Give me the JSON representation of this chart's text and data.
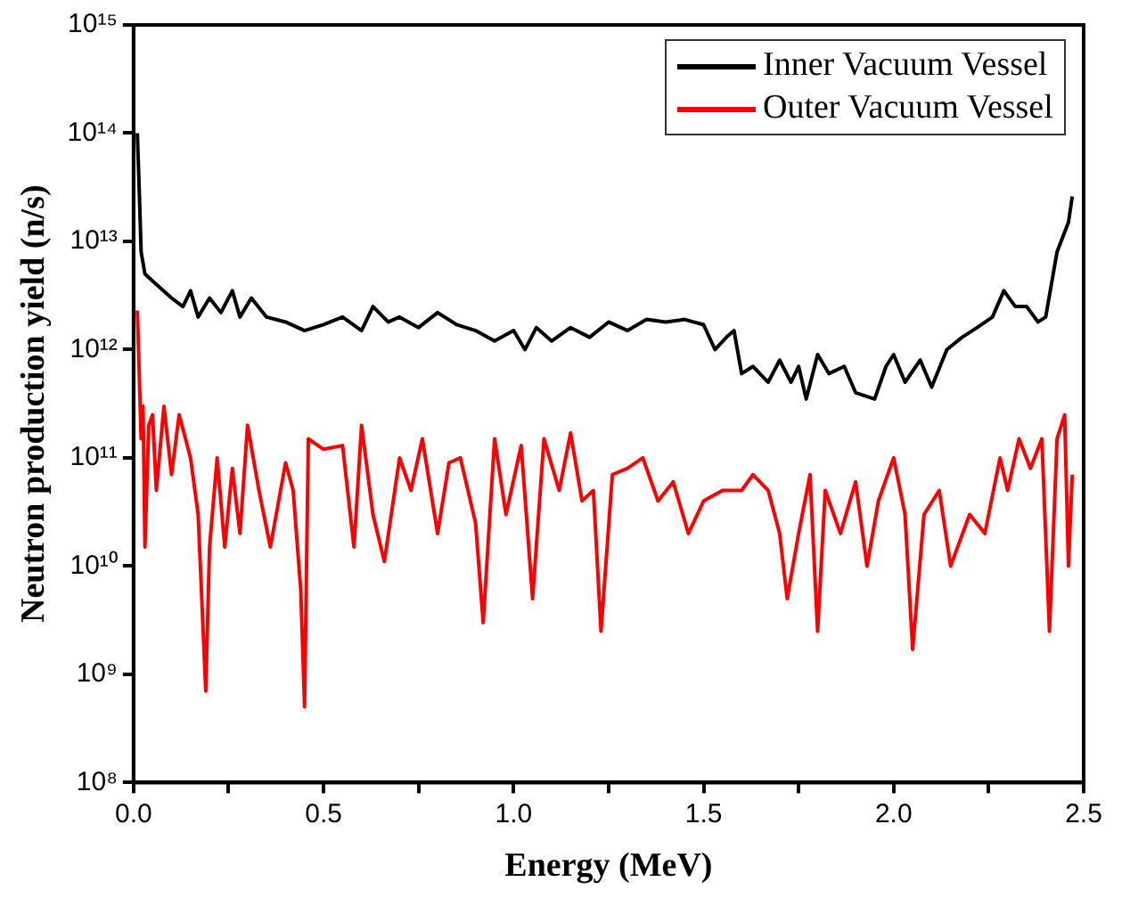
{
  "chart_data": {
    "type": "line",
    "xlabel": "Energy (MeV)",
    "ylabel": "Neutron production yield (n/s)",
    "log": "y",
    "grid": false,
    "legend": "top right",
    "marker": "none",
    "line_style": "solid",
    "xlim": [
      0,
      2.5
    ],
    "xticks": [
      {
        "value": 0,
        "label": "0.0"
      },
      {
        "value": 0.25,
        "label": null
      },
      {
        "value": 0.5,
        "label": "0.5"
      },
      {
        "value": 0.75,
        "label": null
      },
      {
        "value": 1,
        "label": "1.0"
      },
      {
        "value": 1.25,
        "label": null
      },
      {
        "value": 1.5,
        "label": "1.5"
      },
      {
        "value": 1.75,
        "label": null
      },
      {
        "value": 2,
        "label": "2.0"
      },
      {
        "value": 2.25,
        "label": null
      },
      {
        "value": 2.5,
        "label": "2.5"
      }
    ],
    "ylim": [
      100000000.0,
      1000000000000000.0
    ],
    "yticks": [
      {
        "value": 100000000.0,
        "label": "10⁸"
      },
      {
        "value": 1000000000.0,
        "label": "10⁹"
      },
      {
        "value": 10000000000.0,
        "label": "10¹⁰"
      },
      {
        "value": 100000000000.0,
        "label": "10¹¹"
      },
      {
        "value": 1000000000000.0,
        "label": "10¹²"
      },
      {
        "value": 10000000000000.0,
        "label": "10¹³"
      },
      {
        "value": 100000000000000.0,
        "label": "10¹⁴"
      },
      {
        "value": 1000000000000000.0,
        "label": "10¹⁵"
      }
    ],
    "series": [
      {
        "name": "Inner Vacuum Vessel",
        "color": "#000000",
        "x": [
          0.01,
          0.015,
          0.02,
          0.03,
          0.06,
          0.1,
          0.13,
          0.15,
          0.17,
          0.2,
          0.23,
          0.26,
          0.28,
          0.31,
          0.35,
          0.4,
          0.45,
          0.5,
          0.55,
          0.6,
          0.63,
          0.67,
          0.7,
          0.75,
          0.8,
          0.85,
          0.9,
          0.95,
          1.0,
          1.03,
          1.06,
          1.1,
          1.15,
          1.2,
          1.25,
          1.3,
          1.35,
          1.4,
          1.45,
          1.5,
          1.53,
          1.56,
          1.58,
          1.6,
          1.63,
          1.67,
          1.7,
          1.73,
          1.75,
          1.77,
          1.8,
          1.83,
          1.87,
          1.9,
          1.95,
          1.98,
          2.0,
          2.03,
          2.07,
          2.1,
          2.14,
          2.18,
          2.22,
          2.26,
          2.29,
          2.32,
          2.35,
          2.38,
          2.4,
          2.43,
          2.46,
          2.47
        ],
        "values": [
          100000000000000.0,
          30000000000000.0,
          8000000000000.0,
          5000000000000.0,
          4000000000000.0,
          3000000000000.0,
          2500000000000.0,
          3500000000000.0,
          2000000000000.0,
          3000000000000.0,
          2200000000000.0,
          3500000000000.0,
          2000000000000.0,
          3000000000000.0,
          2000000000000.0,
          1800000000000.0,
          1500000000000.0,
          1700000000000.0,
          2000000000000.0,
          1500000000000.0,
          2500000000000.0,
          1800000000000.0,
          2000000000000.0,
          1600000000000.0,
          2200000000000.0,
          1700000000000.0,
          1500000000000.0,
          1200000000000.0,
          1500000000000.0,
          1000000000000.0,
          1600000000000.0,
          1200000000000.0,
          1600000000000.0,
          1300000000000.0,
          1800000000000.0,
          1500000000000.0,
          1900000000000.0,
          1800000000000.0,
          1900000000000.0,
          1700000000000.0,
          1000000000000.0,
          1300000000000.0,
          1500000000000.0,
          600000000000.0,
          700000000000.0,
          500000000000.0,
          800000000000.0,
          500000000000.0,
          700000000000.0,
          350000000000.0,
          900000000000.0,
          600000000000.0,
          700000000000.0,
          400000000000.0,
          350000000000.0,
          700000000000.0,
          900000000000.0,
          500000000000.0,
          800000000000.0,
          450000000000.0,
          1000000000000.0,
          1300000000000.0,
          1600000000000.0,
          2000000000000.0,
          3500000000000.0,
          2500000000000.0,
          2500000000000.0,
          1800000000000.0,
          2000000000000.0,
          8000000000000.0,
          15000000000000.0,
          26000000000000.0
        ]
      },
      {
        "name": "Outer Vacuum Vessel",
        "color": "#ff0000",
        "x": [
          0.01,
          0.015,
          0.02,
          0.025,
          0.03,
          0.04,
          0.05,
          0.06,
          0.08,
          0.1,
          0.12,
          0.15,
          0.17,
          0.19,
          0.2,
          0.22,
          0.24,
          0.26,
          0.28,
          0.3,
          0.33,
          0.36,
          0.4,
          0.42,
          0.44,
          0.45,
          0.46,
          0.5,
          0.55,
          0.58,
          0.6,
          0.63,
          0.66,
          0.7,
          0.73,
          0.76,
          0.8,
          0.83,
          0.86,
          0.9,
          0.92,
          0.95,
          0.98,
          1.02,
          1.05,
          1.08,
          1.12,
          1.15,
          1.18,
          1.21,
          1.23,
          1.26,
          1.3,
          1.34,
          1.38,
          1.42,
          1.46,
          1.5,
          1.55,
          1.6,
          1.63,
          1.67,
          1.7,
          1.72,
          1.75,
          1.78,
          1.8,
          1.82,
          1.86,
          1.9,
          1.93,
          1.96,
          2.0,
          2.03,
          2.05,
          2.08,
          2.12,
          2.15,
          2.2,
          2.24,
          2.28,
          2.3,
          2.33,
          2.36,
          2.39,
          2.41,
          2.43,
          2.45,
          2.46,
          2.47
        ],
        "values": [
          2300000000000.0,
          600000000000.0,
          150000000000.0,
          300000000000.0,
          15000000000.0,
          200000000000.0,
          250000000000.0,
          50000000000.0,
          300000000000.0,
          70000000000.0,
          250000000000.0,
          100000000000.0,
          30000000000.0,
          700000000.0,
          15000000000.0,
          100000000000.0,
          15000000000.0,
          80000000000.0,
          20000000000.0,
          200000000000.0,
          50000000000.0,
          15000000000.0,
          90000000000.0,
          50000000000.0,
          6000000000.0,
          500000000.0,
          150000000000.0,
          120000000000.0,
          130000000000.0,
          15000000000.0,
          200000000000.0,
          30000000000.0,
          11000000000.0,
          100000000000.0,
          50000000000.0,
          150000000000.0,
          20000000000.0,
          90000000000.0,
          100000000000.0,
          25000000000.0,
          3000000000.0,
          150000000000.0,
          30000000000.0,
          130000000000.0,
          5000000000.0,
          150000000000.0,
          50000000000.0,
          170000000000.0,
          40000000000.0,
          50000000000.0,
          2500000000.0,
          70000000000.0,
          80000000000.0,
          100000000000.0,
          40000000000.0,
          60000000000.0,
          20000000000.0,
          40000000000.0,
          50000000000.0,
          50000000000.0,
          70000000000.0,
          50000000000.0,
          20000000000.0,
          5000000000.0,
          20000000000.0,
          70000000000.0,
          2500000000.0,
          50000000000.0,
          20000000000.0,
          60000000000.0,
          10000000000.0,
          40000000000.0,
          100000000000.0,
          30000000000.0,
          1700000000.0,
          30000000000.0,
          50000000000.0,
          10000000000.0,
          30000000000.0,
          20000000000.0,
          100000000000.0,
          50000000000.0,
          150000000000.0,
          80000000000.0,
          150000000000.0,
          2500000000.0,
          150000000000.0,
          250000000000.0,
          10000000000.0,
          70000000000.0
        ]
      }
    ]
  }
}
